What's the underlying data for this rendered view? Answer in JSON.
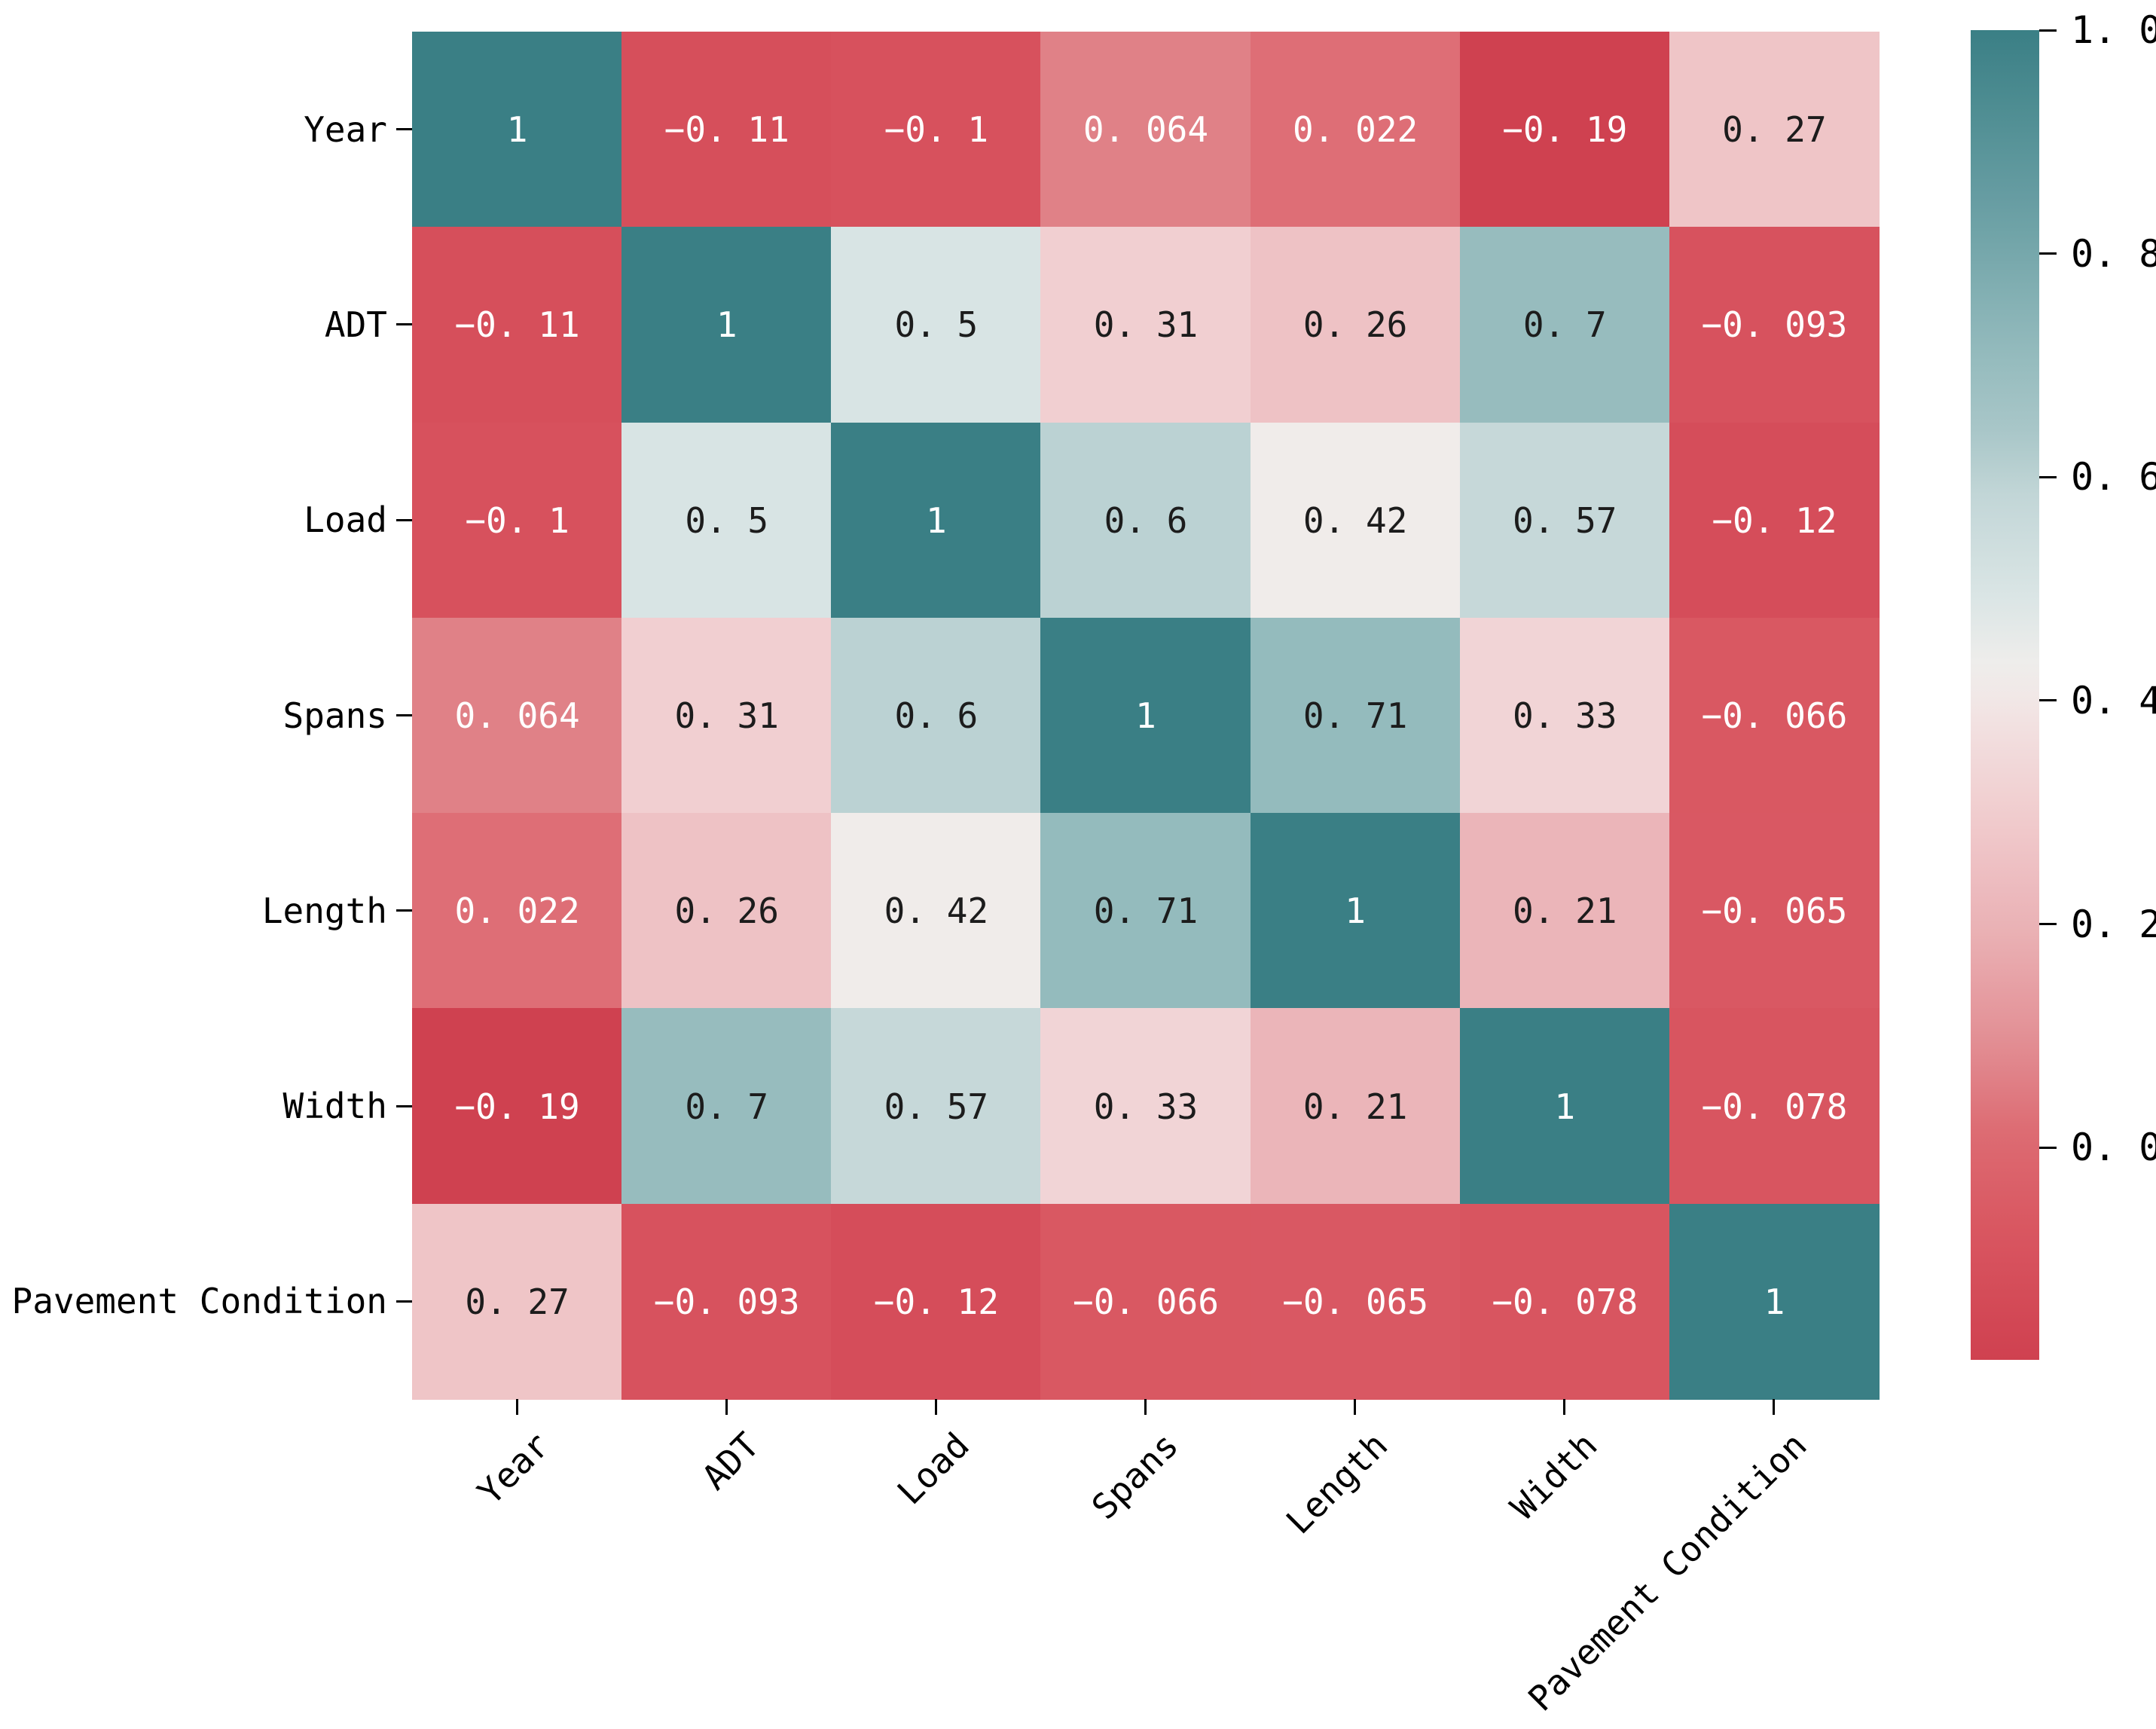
{
  "figure": {
    "background": "#ffffff",
    "tick_color": "#000000"
  },
  "chart_data": {
    "type": "heatmap",
    "title": "",
    "x_categories": [
      "Year",
      "ADT",
      "Load",
      "Spans",
      "Length",
      "Width",
      "Pavement Condition"
    ],
    "y_categories": [
      "Year",
      "ADT",
      "Load",
      "Spans",
      "Length",
      "Width",
      "Pavement Condition"
    ],
    "matrix": [
      [
        1,
        -0.11,
        -0.1,
        0.064,
        0.022,
        -0.19,
        0.27
      ],
      [
        -0.11,
        1,
        0.5,
        0.31,
        0.26,
        0.7,
        -0.093
      ],
      [
        -0.1,
        0.5,
        1,
        0.6,
        0.42,
        0.57,
        -0.12
      ],
      [
        0.064,
        0.31,
        0.6,
        1,
        0.71,
        0.33,
        -0.066
      ],
      [
        0.022,
        0.26,
        0.42,
        0.71,
        1,
        0.21,
        -0.065
      ],
      [
        -0.19,
        0.7,
        0.57,
        0.33,
        0.21,
        1,
        -0.078
      ],
      [
        0.27,
        -0.093,
        -0.12,
        -0.066,
        -0.065,
        -0.078,
        1
      ]
    ],
    "cell_labels": [
      [
        "1",
        "−0. 11",
        "−0. 1",
        "0. 064",
        "0. 022",
        "−0. 19",
        "0. 27"
      ],
      [
        "−0. 11",
        "1",
        "0. 5",
        "0. 31",
        "0. 26",
        "0. 7",
        "−0. 093"
      ],
      [
        "−0. 1",
        "0. 5",
        "1",
        "0. 6",
        "0. 42",
        "0. 57",
        "−0. 12"
      ],
      [
        "0. 064",
        "0. 31",
        "0. 6",
        "1",
        "0. 71",
        "0. 33",
        "−0. 066"
      ],
      [
        "0. 022",
        "0. 26",
        "0. 42",
        "0. 71",
        "1",
        "0. 21",
        "−0. 065"
      ],
      [
        "−0. 19",
        "0. 7",
        "0. 57",
        "0. 33",
        "0. 21",
        "1",
        "−0. 078"
      ],
      [
        "0. 27",
        "−0. 093",
        "−0. 12",
        "−0. 066",
        "−0. 065",
        "−0. 078",
        "1"
      ]
    ],
    "vmin": -0.19,
    "vmax": 1.0,
    "grid": false,
    "colormap": {
      "name": "diverging-red-white-teal",
      "anchors": [
        {
          "t": 0.0,
          "color": "#cf4150"
        },
        {
          "t": 0.09,
          "color": "#d8545f"
        },
        {
          "t": 0.17,
          "color": "#dd6a72"
        },
        {
          "t": 0.24,
          "color": "#e28f94"
        },
        {
          "t": 0.32,
          "color": "#eab0b4"
        },
        {
          "t": 0.4,
          "color": "#f0c9cb"
        },
        {
          "t": 0.47,
          "color": "#f2dedf"
        },
        {
          "t": 0.52,
          "color": "#f0eeec"
        },
        {
          "t": 0.58,
          "color": "#d8e4e4"
        },
        {
          "t": 0.65,
          "color": "#c2d6d7"
        },
        {
          "t": 0.7,
          "color": "#a8c6c8"
        },
        {
          "t": 0.76,
          "color": "#93babc"
        },
        {
          "t": 0.86,
          "color": "#6ba0a5"
        },
        {
          "t": 1.0,
          "color": "#3a7f85"
        }
      ]
    },
    "annotation_text_colors": {
      "light": "#ffffff",
      "dark": "#1c1c1c",
      "luminance_threshold": 0.408
    },
    "colorbar": {
      "position": "right",
      "tick_labels": [
        "1. 0",
        "0. 8",
        "0. 6",
        "0. 4",
        "0. 2",
        "0. 0"
      ],
      "tick_values": [
        1.0,
        0.8,
        0.6,
        0.4,
        0.2,
        0.0
      ]
    }
  }
}
